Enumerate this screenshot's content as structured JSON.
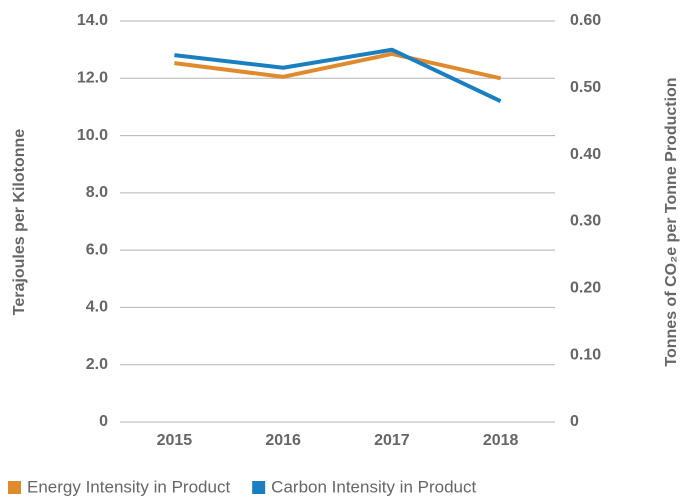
{
  "chart_data": {
    "type": "line",
    "categories": [
      "2015",
      "2016",
      "2017",
      "2018"
    ],
    "series": [
      {
        "name": "Energy Intensity in Product",
        "color": "#e08a2e",
        "values": [
          12.53,
          12.05,
          12.85,
          12.0
        ]
      },
      {
        "name": "Carbon Intensity in Product",
        "color": "#1a7fc1",
        "axis": "y2",
        "values": [
          0.549,
          0.53,
          0.557,
          0.48
        ]
      }
    ],
    "ylabel": "Terajoules per Kilotonne",
    "y2label": "Tonnes of CO₂e per Tonne Production",
    "ylim": [
      0,
      14
    ],
    "yticks": [
      0,
      {
        "value": 2,
        "label": "2.0"
      },
      {
        "value": 4,
        "label": "4.0"
      },
      {
        "value": 6,
        "label": "6.0"
      },
      {
        "value": 8,
        "label": "8.0"
      },
      {
        "value": 10,
        "label": "10.0"
      },
      {
        "value": 12,
        "label": "12.0"
      },
      {
        "value": 14,
        "label": "14.0"
      }
    ],
    "y2lim": [
      0,
      0.6
    ],
    "y2ticks": [
      0,
      {
        "value": 0.1,
        "label": "0.10"
      },
      {
        "value": 0.2,
        "label": "0.20"
      },
      {
        "value": 0.3,
        "label": "0.30"
      },
      {
        "value": 0.4,
        "label": "0.40"
      },
      {
        "value": 0.5,
        "label": "0.50"
      },
      {
        "value": 0.6,
        "label": "0.60"
      }
    ],
    "grid": true,
    "legend": "bottom"
  }
}
